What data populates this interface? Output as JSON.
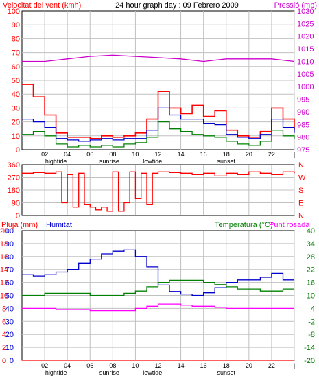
{
  "colors": {
    "wind": "#ff0000",
    "gust": "#ff0000",
    "avgwind": "#0000cc",
    "wind_green": "#008000",
    "pressure": "#cc00cc",
    "direction": "#ff0000",
    "humidity": "#0000cc",
    "temperature": "#008000",
    "dewpoint": "#ff00ff",
    "rain": "#ff0000",
    "grid": "#c0c0c0",
    "frame": "#000000"
  },
  "header": {
    "left": "Velocitat del vent (kmh)",
    "center": "24 hour graph day : 09 Febrero 2009",
    "right": "Pressió (mb)"
  },
  "marker_labels": {
    "hightide": "hightide",
    "sunrise": "sunrise",
    "lowtide": "lowtide",
    "sunset": "sunset"
  },
  "bottom_header": {
    "rain": "Pluja (mm)",
    "humidity": "Humitat",
    "temperature": "Temperatura (°C)",
    "dewpoint": "Punt rosada"
  },
  "direction_labels": [
    "N",
    "W",
    "S",
    "E",
    "N"
  ],
  "chart_data": [
    {
      "type": "line",
      "x_ticks": [
        "02",
        "04",
        "06",
        "08",
        "10",
        "12",
        "14",
        "16",
        "18",
        "20",
        "22",
        "|"
      ],
      "y_left_ticks": [
        "0",
        "10",
        "20",
        "30",
        "40",
        "50",
        "60",
        "70",
        "80",
        "90",
        "100"
      ],
      "y_right_ticks": [
        "975",
        "980",
        "985",
        "990",
        "995",
        "1000",
        "1005",
        "1010",
        "1015",
        "1020",
        "1025",
        "1030"
      ],
      "ylim": [
        0,
        100
      ],
      "ylim_right": [
        975,
        1030
      ],
      "xlim": [
        0,
        24
      ],
      "series": [
        {
          "key": "gust",
          "x": [
            0,
            1,
            2,
            3,
            4,
            5,
            6,
            7,
            8,
            9,
            10,
            11,
            12,
            13,
            14,
            15,
            16,
            17,
            18,
            19,
            20,
            21,
            22,
            23,
            24
          ],
          "values": [
            47,
            38,
            25,
            12,
            9,
            9,
            8,
            10,
            9,
            10,
            12,
            22,
            42,
            30,
            26,
            32,
            24,
            28,
            14,
            10,
            9,
            13,
            30,
            22,
            14
          ]
        },
        {
          "key": "avgwind",
          "x": [
            0,
            1,
            2,
            3,
            4,
            5,
            6,
            7,
            8,
            9,
            10,
            11,
            12,
            13,
            14,
            15,
            16,
            17,
            18,
            19,
            20,
            21,
            22,
            23,
            24
          ],
          "values": [
            22,
            20,
            16,
            8,
            7,
            6,
            7,
            8,
            7,
            8,
            8,
            14,
            30,
            25,
            22,
            22,
            19,
            18,
            11,
            9,
            8,
            11,
            22,
            16,
            12
          ]
        },
        {
          "key": "wind_green",
          "x": [
            0,
            1,
            2,
            3,
            4,
            5,
            6,
            7,
            8,
            9,
            10,
            11,
            12,
            13,
            14,
            15,
            16,
            17,
            18,
            19,
            20,
            21,
            22,
            23,
            24
          ],
          "values": [
            11,
            13,
            10,
            4,
            2,
            3,
            2,
            3,
            2,
            4,
            5,
            9,
            20,
            15,
            13,
            11,
            10,
            9,
            6,
            4,
            3,
            6,
            14,
            10,
            8
          ]
        },
        {
          "key": "pressure",
          "x": [
            0,
            2,
            4,
            6,
            8,
            10,
            12,
            14,
            16,
            18,
            20,
            22,
            24
          ],
          "values": [
            1010,
            1010,
            1011,
            1012,
            1012.5,
            1012,
            1011.5,
            1011,
            1010,
            1011,
            1011,
            1011,
            1010
          ]
        }
      ]
    },
    {
      "type": "line",
      "y_ticks": [
        "0",
        "90",
        "180",
        "270",
        "360"
      ],
      "ylim": [
        0,
        360
      ],
      "xlim": [
        0,
        24
      ],
      "series": [
        {
          "key": "direction",
          "x": [
            0,
            1,
            2,
            3,
            3.5,
            4,
            4.5,
            5,
            5.5,
            6,
            6.5,
            7,
            7.5,
            8,
            8.5,
            9,
            9.5,
            10,
            10.5,
            11,
            11.5,
            12,
            13,
            14,
            15,
            16,
            17,
            18,
            19,
            20,
            21,
            22,
            23,
            24
          ],
          "values": [
            300,
            305,
            300,
            310,
            90,
            290,
            60,
            300,
            80,
            60,
            40,
            60,
            30,
            310,
            30,
            90,
            310,
            120,
            300,
            80,
            300,
            310,
            305,
            300,
            290,
            300,
            280,
            300,
            290,
            310,
            300,
            290,
            310,
            300
          ]
        }
      ]
    },
    {
      "type": "line",
      "x_ticks": [
        "02",
        "04",
        "06",
        "08",
        "10",
        "12",
        "14",
        "16",
        "18",
        "20",
        "22",
        "|"
      ],
      "y_left_ticks": [
        "0",
        "10",
        "20",
        "30",
        "40",
        "50",
        "60",
        "70",
        "80",
        "90",
        "100"
      ],
      "y_left2_ticks": [
        "0",
        "2",
        "4",
        "6",
        "8",
        "10",
        "12",
        "14",
        "16",
        "18",
        "20"
      ],
      "y_right_ticks": [
        "-20",
        "-14",
        "-8",
        "-2",
        "4",
        "10",
        "16",
        "22",
        "28",
        "34",
        "40"
      ],
      "ylim": [
        0,
        100
      ],
      "ylim_right": [
        -20,
        40
      ],
      "xlim": [
        0,
        24
      ],
      "series": [
        {
          "key": "humidity",
          "x": [
            0,
            1,
            2,
            3,
            4,
            5,
            6,
            7,
            8,
            9,
            10,
            11,
            12,
            13,
            14,
            15,
            16,
            17,
            18,
            19,
            20,
            21,
            22,
            23,
            24
          ],
          "values": [
            66,
            65,
            66,
            68,
            70,
            75,
            78,
            82,
            84,
            85,
            80,
            72,
            58,
            53,
            51,
            50,
            52,
            56,
            60,
            62,
            62,
            64,
            67,
            62,
            62
          ]
        },
        {
          "key": "temperature",
          "x": [
            0,
            1,
            2,
            3,
            4,
            5,
            6,
            7,
            8,
            9,
            10,
            11,
            12,
            13,
            14,
            15,
            16,
            17,
            18,
            19,
            20,
            21,
            22,
            23,
            24
          ],
          "values": [
            10,
            10,
            11,
            11,
            11,
            11,
            10,
            10,
            10,
            11,
            12,
            14,
            16,
            17,
            17,
            17,
            16,
            15,
            14,
            13,
            13,
            12,
            12,
            13,
            13
          ]
        },
        {
          "key": "dewpoint",
          "x": [
            0,
            1,
            2,
            3,
            4,
            5,
            6,
            7,
            8,
            9,
            10,
            11,
            12,
            13,
            14,
            15,
            16,
            17,
            18,
            19,
            20,
            21,
            22,
            23,
            24
          ],
          "values": [
            4,
            4,
            4,
            3.5,
            3.5,
            3.5,
            3,
            3,
            3,
            3,
            4,
            5,
            6,
            6,
            5.5,
            5,
            5,
            4.5,
            4,
            4,
            4,
            4,
            4,
            4,
            4
          ]
        },
        {
          "key": "rain",
          "x": [
            0,
            24
          ],
          "values": [
            0,
            0
          ]
        }
      ]
    }
  ]
}
